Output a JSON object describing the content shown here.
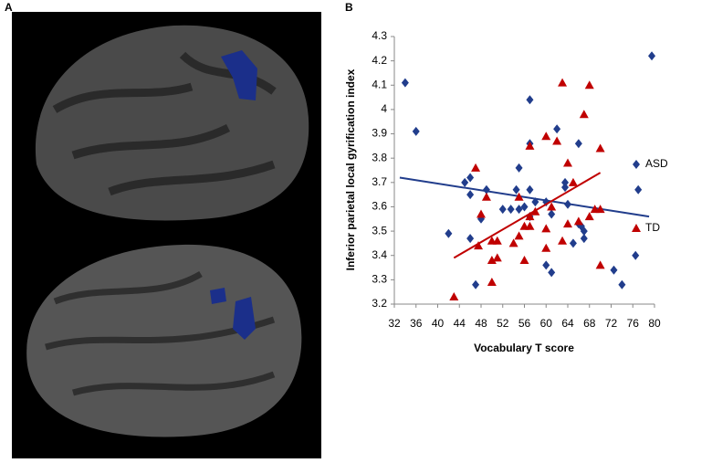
{
  "panels": {
    "a": {
      "label": "A"
    }
  },
  "chart_data": {
    "type": "scatter",
    "panel_label": "B",
    "xlabel": "Vocabulary T score",
    "ylabel": "Inferior parietal local gyrification index",
    "xlim": [
      32,
      80
    ],
    "xticks": [
      32,
      36,
      40,
      44,
      48,
      52,
      56,
      60,
      64,
      68,
      72,
      76,
      80
    ],
    "ylim": [
      3.2,
      4.3
    ],
    "yticks": [
      3.2,
      3.3,
      3.4,
      3.5,
      3.6,
      3.7,
      3.8,
      3.9,
      4,
      4.1,
      4.2,
      4.3
    ],
    "grid": false,
    "legend": "right",
    "series": [
      {
        "name": "ASD",
        "color": "#213d8c",
        "marker": "diamond",
        "x": [
          34,
          36,
          57,
          62,
          79.5,
          57,
          66,
          55,
          63.5,
          63.5,
          46,
          45,
          49,
          46,
          54.5,
          57,
          58,
          56,
          55,
          52,
          53.5,
          60,
          61,
          64,
          77,
          42,
          46,
          48,
          57,
          66.5,
          66,
          67,
          67,
          60,
          61,
          72.5,
          74,
          76.5,
          47,
          65
        ],
        "values": [
          4.11,
          3.91,
          4.04,
          3.92,
          4.22,
          3.86,
          3.86,
          3.76,
          3.68,
          3.7,
          3.72,
          3.7,
          3.67,
          3.65,
          3.67,
          3.67,
          3.62,
          3.6,
          3.59,
          3.59,
          3.59,
          3.62,
          3.57,
          3.61,
          3.67,
          3.49,
          3.47,
          3.55,
          3.56,
          3.52,
          3.53,
          3.5,
          3.47,
          3.36,
          3.33,
          3.34,
          3.28,
          3.4,
          3.28,
          3.45
        ],
        "trendline": {
          "x": [
            33,
            79
          ],
          "values": [
            3.72,
            3.56
          ]
        }
      },
      {
        "name": "TD",
        "color": "#c00000",
        "marker": "triangle",
        "x": [
          43,
          47,
          47.5,
          48,
          49,
          50,
          50,
          50,
          51,
          51,
          54,
          55,
          55,
          56,
          56,
          57,
          57,
          57,
          58,
          60,
          60,
          60,
          61,
          62,
          63,
          63,
          64,
          64,
          65,
          66,
          67,
          68,
          68,
          69,
          70,
          70,
          70
        ],
        "values": [
          3.23,
          3.76,
          3.44,
          3.57,
          3.64,
          3.46,
          3.38,
          3.29,
          3.46,
          3.39,
          3.45,
          3.48,
          3.64,
          3.38,
          3.52,
          3.85,
          3.56,
          3.52,
          3.58,
          3.89,
          3.51,
          3.43,
          3.6,
          3.87,
          4.11,
          3.46,
          3.78,
          3.53,
          3.7,
          3.54,
          3.98,
          4.1,
          3.56,
          3.59,
          3.84,
          3.36,
          3.59
        ],
        "trendline": {
          "x": [
            43,
            70
          ],
          "values": [
            3.39,
            3.74
          ]
        }
      }
    ]
  }
}
